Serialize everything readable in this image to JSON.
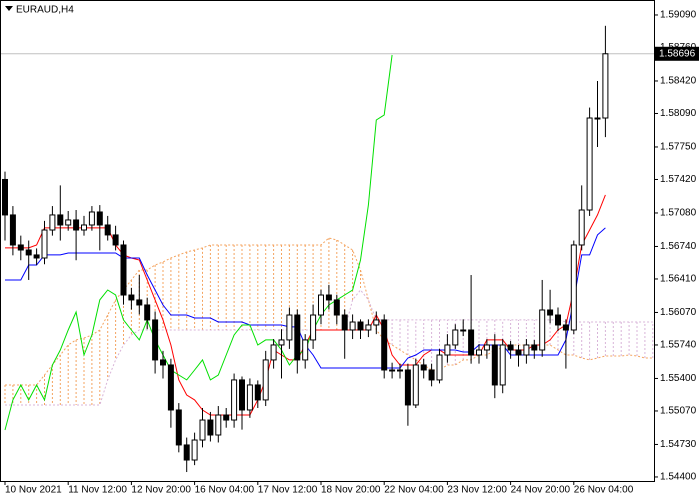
{
  "chart_data": {
    "type": "candlestick",
    "title": "EURAUD,H4",
    "ylim": [
      1.54359,
      1.59242
    ],
    "yticks": [
      {
        "value": 1.5909,
        "label": "1.59090"
      },
      {
        "value": 1.5876,
        "label": "1.58760"
      },
      {
        "value": 1.5842,
        "label": "1.58420"
      },
      {
        "value": 1.5809,
        "label": "1.58090"
      },
      {
        "value": 1.5775,
        "label": "1.57750"
      },
      {
        "value": 1.5742,
        "label": "1.57420"
      },
      {
        "value": 1.5708,
        "label": "1.57080"
      },
      {
        "value": 1.5674,
        "label": "1.56740"
      },
      {
        "value": 1.5641,
        "label": "1.56410"
      },
      {
        "value": 1.5607,
        "label": "1.56070"
      },
      {
        "value": 1.5574,
        "label": "1.55740"
      },
      {
        "value": 1.554,
        "label": "1.55400"
      },
      {
        "value": 1.5507,
        "label": "1.55070"
      },
      {
        "value": 1.5473,
        "label": "1.54730"
      },
      {
        "value": 1.544,
        "label": "1.54400"
      }
    ],
    "bid": 1.58696,
    "bid_line_color": "#c0c0c0",
    "up_color": "#ffffff",
    "down_color": "#000000",
    "categories": [
      "10 Nov 2021",
      null,
      null,
      null,
      null,
      null,
      null,
      null,
      "11 Nov 12:00",
      null,
      null,
      null,
      null,
      null,
      null,
      null,
      "12 Nov 20:00",
      null,
      null,
      null,
      null,
      null,
      null,
      null,
      "16 Nov 04:00",
      null,
      null,
      null,
      null,
      null,
      null,
      null,
      "17 Nov 12:00",
      null,
      null,
      null,
      null,
      null,
      null,
      null,
      "18 Nov 20:00",
      null,
      null,
      null,
      null,
      null,
      null,
      null,
      "22 Nov 04:00",
      null,
      null,
      null,
      null,
      null,
      null,
      null,
      "23 Nov 12:00",
      null,
      null,
      null,
      null,
      null,
      null,
      null,
      "24 Nov 20:00",
      null,
      null,
      null,
      null,
      null,
      null,
      null,
      "26 Nov 04:00",
      null,
      null,
      null,
      null,
      null,
      null,
      null,
      null,
      null,
      null
    ],
    "open": [
      1.5742,
      1.5706,
      1.56755,
      1.56704,
      1.56654,
      1.56623,
      1.56907,
      1.5706,
      1.56958,
      1.57009,
      1.56907,
      1.56958,
      1.5709,
      1.56958,
      1.56857,
      1.56755,
      1.56247,
      1.56197,
      1.56146,
      1.55994,
      1.55588,
      1.55537,
      1.5508,
      1.54725,
      1.54572,
      1.54775,
      1.54978,
      1.54826,
      1.55029,
      1.54978,
      1.55385,
      1.5508,
      1.55334,
      1.55182,
      1.55588,
      1.5574,
      1.55791,
      1.56044,
      1.55588,
      1.55791,
      1.56044,
      1.56247,
      1.56197,
      1.56044,
      1.55892,
      1.55973,
      1.55892,
      1.55943,
      1.55994,
      1.55486,
      1.55486,
      1.55486,
      1.55131,
      1.55537,
      1.55486,
      1.55385,
      1.55638,
      1.5574,
      1.55892,
      1.55892,
      1.55638,
      1.55689,
      1.5574,
      1.55334,
      1.5574,
      1.55689,
      1.55638,
      1.5574,
      1.55689,
      1.56095,
      1.56044,
      1.55943,
      1.55892,
      1.56755,
      1.5711,
      1.58044,
      1.58044,
      null,
      null,
      null,
      null,
      null,
      null
    ],
    "high": [
      1.575,
      1.5715,
      1.5685,
      1.568,
      1.5672,
      1.57,
      1.5715,
      1.5736,
      1.571,
      1.5711,
      1.5705,
      1.5715,
      1.5716,
      1.5705,
      1.5695,
      1.568,
      1.5632,
      1.5645,
      1.5622,
      1.5608,
      1.5568,
      1.556,
      1.5515,
      1.548,
      1.5485,
      1.551,
      1.5506,
      1.5512,
      1.551,
      1.5545,
      1.5542,
      1.554,
      1.5538,
      1.5568,
      1.558,
      1.559,
      1.5612,
      1.561,
      1.5585,
      1.5615,
      1.563,
      1.5635,
      1.5625,
      1.561,
      1.5605,
      1.56,
      1.56,
      1.5608,
      1.5605,
      1.5556,
      1.5555,
      1.5555,
      1.556,
      1.556,
      1.5555,
      1.557,
      1.5585,
      1.5595,
      1.56,
      1.5645,
      1.5575,
      1.558,
      1.5585,
      1.558,
      1.5578,
      1.5574,
      1.558,
      1.5579,
      1.564,
      1.563,
      1.5612,
      1.56,
      1.568,
      1.5736,
      1.5815,
      1.5842,
      1.5898,
      null,
      null,
      null,
      null,
      null,
      null
    ],
    "low": [
      1.568,
      1.5665,
      1.566,
      1.564,
      1.5655,
      1.5656,
      1.5685,
      1.568,
      1.569,
      1.566,
      1.5685,
      1.569,
      1.567,
      1.568,
      1.567,
      1.5615,
      1.561,
      1.5605,
      1.559,
      1.5545,
      1.554,
      1.549,
      1.5465,
      1.5445,
      1.5452,
      1.547,
      1.5476,
      1.5475,
      1.549,
      1.549,
      1.5488,
      1.55,
      1.551,
      1.5512,
      1.555,
      1.554,
      1.557,
      1.5545,
      1.555,
      1.557,
      1.5595,
      1.561,
      1.5595,
      1.556,
      1.558,
      1.558,
      1.5582,
      1.5585,
      1.554,
      1.554,
      1.554,
      1.5492,
      1.551,
      1.554,
      1.5532,
      1.5535,
      1.5556,
      1.557,
      1.5583,
      1.5555,
      1.5555,
      1.556,
      1.552,
      1.5525,
      1.556,
      1.5552,
      1.5555,
      1.556,
      1.5562,
      1.5596,
      1.5588,
      1.555,
      1.5585,
      1.567,
      1.5705,
      1.5775,
      1.5785,
      null,
      null,
      null,
      null,
      null,
      null
    ],
    "close": [
      1.5706,
      1.56755,
      1.56704,
      1.56654,
      1.56623,
      1.56907,
      1.5706,
      1.56958,
      1.57009,
      1.56907,
      1.56958,
      1.5709,
      1.56958,
      1.56857,
      1.56755,
      1.56247,
      1.56197,
      1.56146,
      1.55994,
      1.55588,
      1.55537,
      1.5508,
      1.54725,
      1.54572,
      1.54775,
      1.54978,
      1.54826,
      1.55029,
      1.54978,
      1.55385,
      1.5508,
      1.55334,
      1.55182,
      1.55588,
      1.5574,
      1.55791,
      1.56044,
      1.55588,
      1.55791,
      1.56044,
      1.56247,
      1.56197,
      1.56044,
      1.55892,
      1.55973,
      1.55892,
      1.55943,
      1.55994,
      1.55486,
      1.55486,
      1.55486,
      1.55131,
      1.55537,
      1.55486,
      1.55385,
      1.55638,
      1.5574,
      1.55892,
      1.55892,
      1.55638,
      1.55689,
      1.5574,
      1.55334,
      1.5574,
      1.55689,
      1.55638,
      1.5574,
      1.55689,
      1.56095,
      1.56044,
      1.55943,
      1.55892,
      1.56755,
      1.5711,
      1.58044,
      1.58044,
      1.58696,
      null,
      null,
      null,
      null,
      null,
      null
    ],
    "indicators": [
      {
        "color": "#ff0000",
        "values": [
          1.56725,
          1.56725,
          1.56725,
          1.56725,
          1.56755,
          1.56928,
          1.56928,
          1.56928,
          1.56928,
          1.56928,
          1.56928,
          1.56928,
          1.56928,
          1.56928,
          1.56755,
          1.56654,
          1.56623,
          1.56603,
          1.564,
          1.56197,
          1.55994,
          1.5574,
          1.55385,
          1.55232,
          1.55182,
          1.5508,
          1.55029,
          1.55029,
          1.55029,
          1.55029,
          1.55029,
          1.55029,
          1.55182,
          1.55385,
          1.55689,
          1.55638,
          1.55588,
          1.55588,
          1.5574,
          1.55892,
          1.55892,
          1.55892,
          1.55892,
          1.55892,
          1.55892,
          1.55892,
          1.55892,
          1.56044,
          1.55892,
          1.55638,
          1.55537,
          1.55537,
          1.55537,
          1.55638,
          1.55689,
          1.55689,
          1.55638,
          1.55638,
          1.55638,
          1.55638,
          1.55638,
          1.55791,
          1.55791,
          1.55791,
          1.55689,
          1.55689,
          1.55689,
          1.5574,
          1.5574,
          1.55791,
          1.55892,
          1.55943,
          1.56298,
          1.56755,
          1.56907,
          1.5706,
          1.57263,
          null,
          null,
          null,
          null,
          null,
          null
        ]
      },
      {
        "color": "#0000ff",
        "values": [
          1.564,
          1.564,
          1.564,
          1.56552,
          1.56552,
          1.56654,
          1.56654,
          1.56654,
          1.56674,
          1.56674,
          1.56674,
          1.56674,
          1.56674,
          1.56674,
          1.56674,
          1.56623,
          1.56623,
          1.56623,
          1.5645,
          1.56298,
          1.56146,
          1.56044,
          1.56044,
          1.56044,
          1.56014,
          1.56014,
          1.56014,
          1.55973,
          1.55973,
          1.55973,
          1.55973,
          1.55943,
          1.55943,
          1.55943,
          1.55943,
          1.55943,
          1.55923,
          1.55923,
          1.5574,
          1.55638,
          1.55506,
          1.55506,
          1.55506,
          1.55506,
          1.55506,
          1.55506,
          1.55506,
          1.55506,
          1.55506,
          1.55506,
          1.55506,
          1.55608,
          1.55638,
          1.55689,
          1.55689,
          1.55689,
          1.55689,
          1.55689,
          1.55669,
          1.55669,
          1.5574,
          1.5574,
          1.5574,
          1.5574,
          1.55638,
          1.55638,
          1.55638,
          1.55638,
          1.55638,
          1.55638,
          1.55638,
          1.55791,
          1.56197,
          1.56654,
          1.56654,
          1.56857,
          1.56928,
          null,
          null,
          null,
          null,
          null,
          null
        ]
      },
      {
        "color": "#00e000",
        "values": [
          1.54877,
          1.55182,
          1.55334,
          1.55182,
          1.55334,
          1.55182,
          1.55537,
          1.55689,
          1.55892,
          1.56075,
          1.55638,
          1.55841,
          1.56197,
          1.56298,
          1.56247,
          1.55994,
          1.55892,
          1.55791,
          1.55994,
          1.55791,
          1.55638,
          1.55486,
          1.55435,
          1.55385,
          1.55486,
          1.55588,
          1.55385,
          1.55435,
          1.55638,
          1.55841,
          1.55943,
          1.55943,
          1.5574,
          1.55791,
          1.55791,
          1.55689,
          1.55537,
          1.55638,
          1.55689,
          1.55892,
          1.56044,
          1.56146,
          1.56197,
          1.56247,
          1.56298,
          1.56603,
          1.57161,
          1.58024,
          1.58075,
          1.58684,
          null,
          null,
          null,
          null,
          null,
          null,
          null,
          null,
          null,
          null,
          null,
          null,
          null,
          null,
          null,
          null,
          null,
          null,
          null,
          null,
          null,
          null,
          null,
          null,
          null,
          null,
          null,
          null,
          null,
          null,
          null,
          null,
          null
        ]
      }
    ],
    "cloud": {
      "span_a": {
        "color": "#f4a460",
        "values": [
          1.55334,
          1.55334,
          1.55334,
          1.55334,
          1.55334,
          1.55435,
          1.55537,
          1.55638,
          1.5574,
          1.55791,
          1.55811,
          1.55841,
          1.55892,
          1.56044,
          1.56197,
          1.56298,
          1.564,
          1.56501,
          1.56501,
          1.56552,
          1.56582,
          1.56623,
          1.56654,
          1.56684,
          1.56704,
          1.56725,
          1.56755,
          1.56755,
          1.56755,
          1.56755,
          1.56755,
          1.56755,
          1.56755,
          1.56755,
          1.56755,
          1.56755,
          1.56755,
          1.56755,
          1.56755,
          1.56755,
          1.56755,
          1.56826,
          1.56806,
          1.56755,
          1.56704,
          1.56501,
          1.56197,
          1.55892,
          1.55791,
          1.5574,
          1.55689,
          1.55638,
          1.55588,
          1.55537,
          1.55486,
          1.55486,
          1.55537,
          1.55537,
          1.55588,
          1.55588,
          1.55638,
          1.55638,
          1.55689,
          1.5571,
          1.5574,
          1.5574,
          1.5574,
          1.5574,
          1.5574,
          1.5574,
          1.55689,
          1.55638,
          1.55638,
          1.55608,
          1.55588,
          1.55608,
          1.55628,
          1.55628,
          1.55628,
          1.55638,
          1.55628,
          1.55608,
          1.55608
        ]
      },
      "span_b": {
        "color": "#d8b4d8",
        "values": [
          1.55131,
          1.55131,
          1.55131,
          1.55131,
          1.55131,
          1.55131,
          1.55131,
          1.55131,
          1.55131,
          1.55131,
          1.55131,
          1.55131,
          1.55131,
          1.55385,
          1.55588,
          1.5574,
          1.55841,
          1.55892,
          1.55892,
          1.55892,
          1.55892,
          1.55892,
          1.55892,
          1.55892,
          1.55892,
          1.55892,
          1.55892,
          1.55892,
          1.55892,
          1.55892,
          1.55892,
          1.55892,
          1.55892,
          1.55892,
          1.55892,
          1.55892,
          1.55892,
          1.55892,
          1.55892,
          1.55892,
          1.55892,
          1.55892,
          1.55892,
          1.55892,
          1.56197,
          1.56298,
          1.56197,
          1.55994,
          1.55994,
          1.55994,
          1.55994,
          1.55994,
          1.55994,
          1.55994,
          1.55994,
          1.55994,
          1.55994,
          1.55994,
          1.55994,
          1.55994,
          1.55994,
          1.55994,
          1.55994,
          1.55994,
          1.55994,
          1.55994,
          1.55994,
          1.55994,
          1.55994,
          1.55994,
          1.55994,
          1.55973,
          1.55973,
          1.55973,
          1.55973,
          1.55973,
          1.55973,
          1.55973,
          1.55973,
          1.55973,
          1.55973,
          1.55973,
          1.55973
        ]
      }
    }
  }
}
